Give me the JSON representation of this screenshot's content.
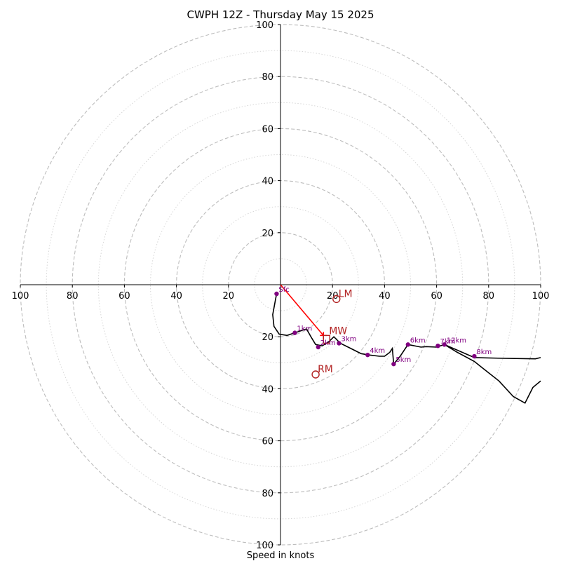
{
  "chart_data": {
    "type": "hodograph",
    "title": "CWPH 12Z - Thursday May 15 2025",
    "xlabel": "Speed in knots",
    "units": "knots",
    "range": 100,
    "major_rings": [
      20,
      40,
      60,
      80,
      100
    ],
    "minor_rings": [
      10,
      30,
      50,
      70,
      90
    ],
    "x_ticks": [
      {
        "value": -100,
        "label": "100"
      },
      {
        "value": -80,
        "label": "80"
      },
      {
        "value": -60,
        "label": "60"
      },
      {
        "value": -40,
        "label": "40"
      },
      {
        "value": -20,
        "label": "20"
      },
      {
        "value": 20,
        "label": "20"
      },
      {
        "value": 40,
        "label": "40"
      },
      {
        "value": 60,
        "label": "60"
      },
      {
        "value": 80,
        "label": "80"
      },
      {
        "value": 100,
        "label": "100"
      }
    ],
    "y_ticks": [
      {
        "value": 100,
        "label": "100"
      },
      {
        "value": 80,
        "label": "80"
      },
      {
        "value": 60,
        "label": "60"
      },
      {
        "value": 40,
        "label": "40"
      },
      {
        "value": 20,
        "label": "20"
      },
      {
        "value": -20,
        "label": "20"
      },
      {
        "value": -40,
        "label": "40"
      },
      {
        "value": -60,
        "label": "60"
      },
      {
        "value": -80,
        "label": "80"
      },
      {
        "value": -100,
        "label": "100"
      }
    ],
    "grid": true,
    "hodograph_line": [
      [
        -1.5,
        -3.5
      ],
      [
        -3,
        -11.5
      ],
      [
        -2.5,
        -16
      ],
      [
        -0.5,
        -19
      ],
      [
        2.5,
        -19.5
      ],
      [
        5.5,
        -18.5
      ],
      [
        8.5,
        -17.5
      ],
      [
        10,
        -17
      ],
      [
        12,
        -20.5
      ],
      [
        13.5,
        -23
      ],
      [
        16,
        -23.5
      ],
      [
        18.5,
        -22
      ],
      [
        20.5,
        -20
      ],
      [
        21.5,
        -21
      ],
      [
        23,
        -22.5
      ],
      [
        27,
        -24.5
      ],
      [
        31,
        -26.5
      ],
      [
        34,
        -27
      ],
      [
        38,
        -27.5
      ],
      [
        40,
        -27.5
      ],
      [
        42,
        -26
      ],
      [
        43,
        -24.5
      ],
      [
        43.5,
        -30.5
      ],
      [
        46,
        -27.5
      ],
      [
        49,
        -23
      ],
      [
        54,
        -24
      ],
      [
        56,
        -23.8
      ],
      [
        60,
        -24
      ],
      [
        63,
        -23
      ],
      [
        68,
        -26
      ],
      [
        74.5,
        -29.5
      ],
      [
        77,
        -31.5
      ],
      [
        84,
        -37
      ],
      [
        89.5,
        -43
      ],
      [
        94,
        -45.5
      ],
      [
        97,
        -39.5
      ],
      [
        100,
        -37
      ]
    ],
    "hodograph_line_branch": [
      [
        63,
        -23
      ],
      [
        74.5,
        -28
      ],
      [
        86,
        -28.3
      ],
      [
        98,
        -28.5
      ],
      [
        100,
        -28
      ]
    ],
    "height_points": [
      {
        "label": "Sfc",
        "u": -1.5,
        "v": -3.5
      },
      {
        "label": "1km",
        "u": 5.5,
        "v": -18.5
      },
      {
        "label": "2km",
        "u": 14.5,
        "v": -24
      },
      {
        "label": "3km",
        "u": 22.5,
        "v": -22.5
      },
      {
        "label": "4km",
        "u": 33.5,
        "v": -27
      },
      {
        "label": "5km",
        "u": 43.5,
        "v": -30.5
      },
      {
        "label": "6km",
        "u": 49,
        "v": -23
      },
      {
        "label": "7km",
        "u": 60.5,
        "v": -23.5
      },
      {
        "label": "12km",
        "u": 63,
        "v": -23
      },
      {
        "label": "8km",
        "u": 74.5,
        "v": -27.5
      }
    ],
    "storm_motions": [
      {
        "label": "LM",
        "u": 21.5,
        "v": -5.5
      },
      {
        "label": "RM",
        "u": 13.5,
        "v": -34.5
      }
    ],
    "mean_wind": {
      "label": "MW",
      "u": 16.5,
      "v": -19.5
    },
    "shear_vector": {
      "from": [
        0,
        0
      ],
      "to": [
        16.5,
        -19.5
      ]
    }
  }
}
